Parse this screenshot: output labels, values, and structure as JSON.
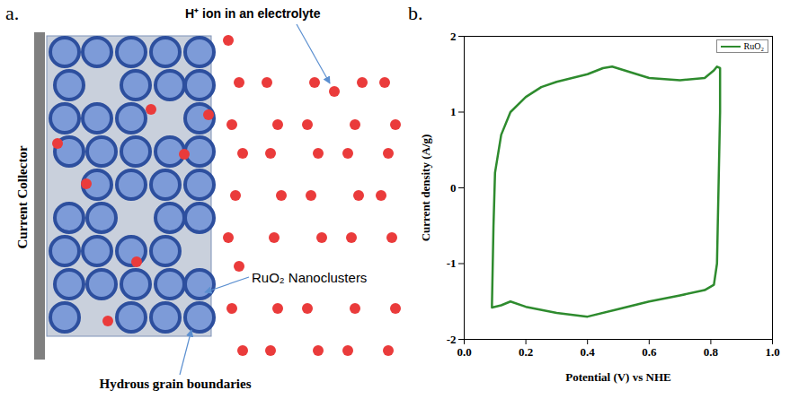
{
  "diagram": {
    "panel_label": "a.",
    "current_collector": "Current Collector",
    "electrolyte_label": "H⁺ ion in an electrolyte",
    "nanocluster_label": "RuO₂ Nanoclusters",
    "grain_boundary_label": "Hydrous grain boundaries"
  },
  "chart_data": {
    "type": "line",
    "panel_label": "b.",
    "xlabel": "Potential (V) vs NHE",
    "ylabel": "Current density (A/g)",
    "xlim": [
      0,
      1
    ],
    "ylim": [
      -2,
      2
    ],
    "xticks": [
      {
        "value": 0,
        "label": "0.0"
      },
      0.2,
      0.4,
      0.6,
      0.8,
      {
        "value": 1,
        "label": "1.0"
      }
    ],
    "yticks": [
      -2,
      -1,
      0,
      1,
      2
    ],
    "grid": false,
    "legend": "top-right",
    "x": [
      0.09,
      0.095,
      0.1,
      0.12,
      0.15,
      0.2,
      0.25,
      0.3,
      0.4,
      0.45,
      0.48,
      0.52,
      0.6,
      0.7,
      0.78,
      0.81,
      0.82,
      0.83,
      0.83,
      0.825,
      0.82,
      0.81,
      0.78,
      0.7,
      0.6,
      0.5,
      0.4,
      0.3,
      0.2,
      0.15,
      0.12,
      0.09,
      0.09
    ],
    "series": [
      {
        "name": "RuO₂",
        "color": "#2e8b2e",
        "values": [
          -1.55,
          -0.5,
          0.2,
          0.7,
          1.0,
          1.2,
          1.33,
          1.4,
          1.5,
          1.58,
          1.6,
          1.55,
          1.45,
          1.42,
          1.45,
          1.55,
          1.6,
          1.58,
          1.0,
          0.0,
          -1.0,
          -1.28,
          -1.35,
          -1.42,
          -1.5,
          -1.6,
          -1.7,
          -1.65,
          -1.57,
          -1.5,
          -1.55,
          -1.58,
          -1.55
        ]
      }
    ]
  }
}
